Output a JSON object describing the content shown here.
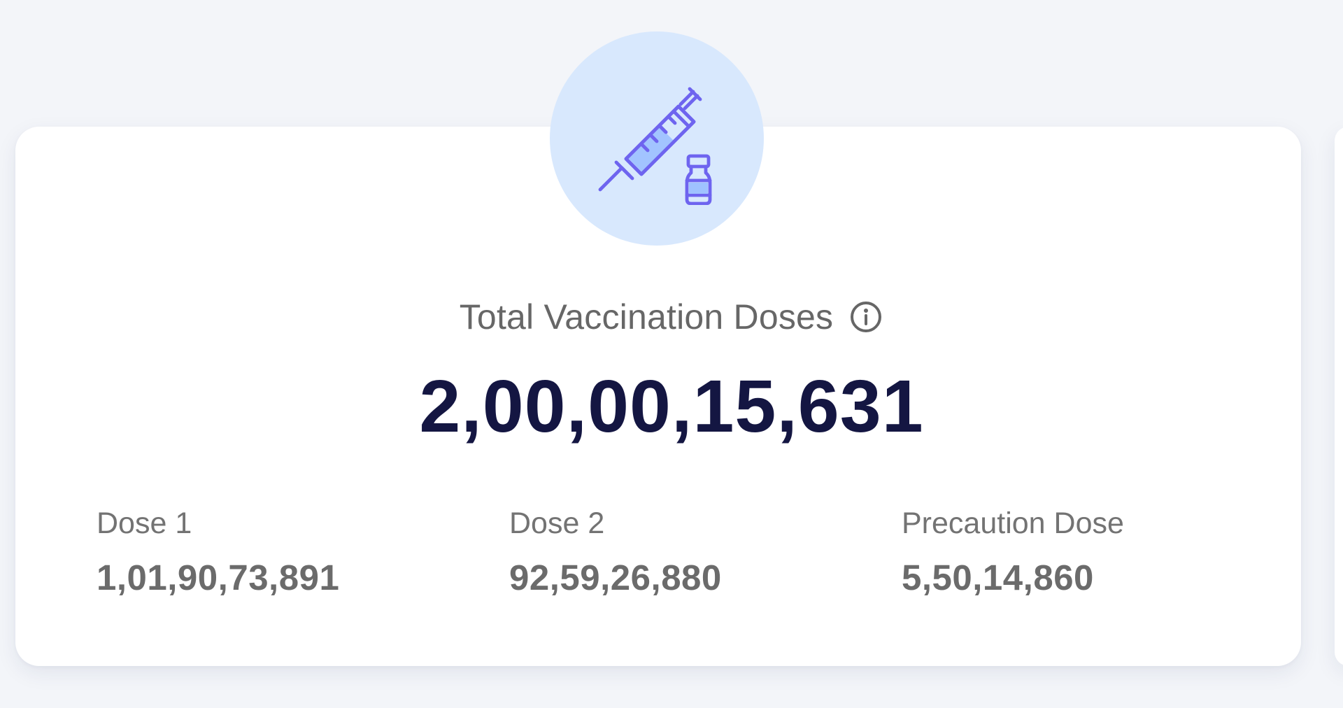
{
  "card": {
    "title": "Total Vaccination Doses",
    "total": "2,00,00,15,631",
    "icons": {
      "main": "syringe-vial-icon",
      "info": "info-icon"
    },
    "doses": [
      {
        "label": "Dose 1",
        "value": "1,01,90,73,891"
      },
      {
        "label": "Dose 2",
        "value": "92,59,26,880"
      },
      {
        "label": "Precaution Dose",
        "value": "5,50,14,860"
      }
    ]
  },
  "colors": {
    "background": "#f3f5f9",
    "card": "#ffffff",
    "icon_circle": "#d8e8fd",
    "icon_stroke": "#6e64ef",
    "icon_fill": "#9fc2ff",
    "title": "#676767",
    "total": "#141642",
    "dose_label": "#737373",
    "dose_value": "#6b6b6b"
  }
}
